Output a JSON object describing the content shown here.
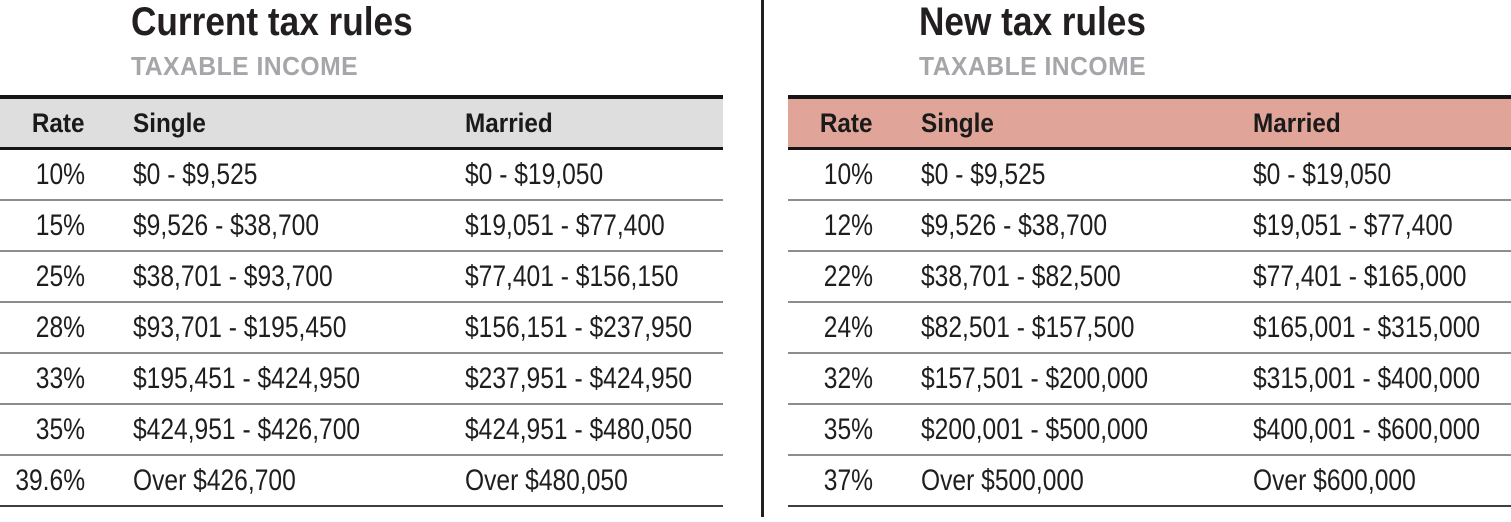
{
  "chart_data": [
    {
      "type": "table",
      "title": "Current tax rules",
      "subtitle": "TAXABLE INCOME",
      "columns": [
        "Rate",
        "Single",
        "Married"
      ],
      "header_bg": "#dedede",
      "rows": [
        [
          "10%",
          "$0 - $9,525",
          "$0 - $19,050"
        ],
        [
          "15%",
          "$9,526 - $38,700",
          "$19,051 - $77,400"
        ],
        [
          "25%",
          "$38,701 - $93,700",
          "$77,401 - $156,150"
        ],
        [
          "28%",
          "$93,701 - $195,450",
          "$156,151 - $237,950"
        ],
        [
          "33%",
          "$195,451 - $424,950",
          "$237,951 - $424,950"
        ],
        [
          "35%",
          "$424,951 - $426,700",
          "$424,951 - $480,050"
        ],
        [
          "39.6%",
          "Over $426,700",
          "Over $480,050"
        ]
      ]
    },
    {
      "type": "table",
      "title": "New tax rules",
      "subtitle": "TAXABLE INCOME",
      "columns": [
        "Rate",
        "Single",
        "Married"
      ],
      "header_bg": "#e0a598",
      "rows": [
        [
          "10%",
          "$0 - $9,525",
          "$0 - $19,050"
        ],
        [
          "12%",
          "$9,526 - $38,700",
          "$19,051 - $77,400"
        ],
        [
          "22%",
          "$38,701 - $82,500",
          "$77,401 - $165,000"
        ],
        [
          "24%",
          "$82,501 - $157,500",
          "$165,001 - $315,000"
        ],
        [
          "32%",
          "$157,501 - $200,000",
          "$315,001 - $400,000"
        ],
        [
          "35%",
          "$200,001 - $500,000",
          "$400,001 - $600,000"
        ],
        [
          "37%",
          "Over $500,000",
          "Over $600,000"
        ]
      ]
    }
  ],
  "style": {
    "divider_color": "#231f20",
    "title_color": "#231f20",
    "subtitle_color": "#a4a6a9",
    "body_text_color": "#1e1e1e"
  }
}
